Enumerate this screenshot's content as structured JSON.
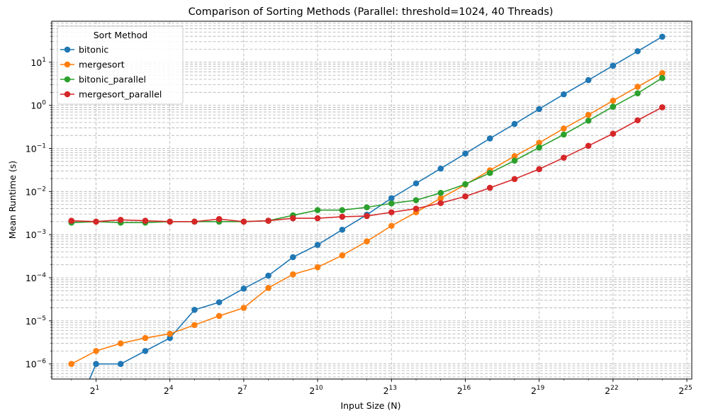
{
  "chart_data": {
    "type": "line",
    "title": "Comparison of Sorting Methods (Parallel: threshold=1024, 40 Threads)",
    "xlabel": "Input Size (N)",
    "ylabel": "Mean Runtime (s)",
    "x_scale": "log2",
    "y_scale": "log10",
    "xlim_exponent": [
      -0.8,
      25.2
    ],
    "ylim_log10": [
      -6.35,
      1.95
    ],
    "x_ticks": [
      {
        "base": "2",
        "exp": "1",
        "e": 1
      },
      {
        "base": "2",
        "exp": "4",
        "e": 4
      },
      {
        "base": "2",
        "exp": "7",
        "e": 7
      },
      {
        "base": "2",
        "exp": "10",
        "e": 10
      },
      {
        "base": "2",
        "exp": "13",
        "e": 13
      },
      {
        "base": "2",
        "exp": "16",
        "e": 16
      },
      {
        "base": "2",
        "exp": "19",
        "e": 19
      },
      {
        "base": "2",
        "exp": "22",
        "e": 22
      },
      {
        "base": "2",
        "exp": "25",
        "e": 25
      }
    ],
    "y_ticks": [
      {
        "base": "10",
        "exp": "1",
        "e": 1
      },
      {
        "base": "10",
        "exp": "0",
        "e": 0
      },
      {
        "base": "10",
        "exp": "−1",
        "e": -1
      },
      {
        "base": "10",
        "exp": "−2",
        "e": -2
      },
      {
        "base": "10",
        "exp": "−3",
        "e": -3
      },
      {
        "base": "10",
        "exp": "−4",
        "e": -4
      },
      {
        "base": "10",
        "exp": "−5",
        "e": -5
      },
      {
        "base": "10",
        "exp": "−6",
        "e": -6
      }
    ],
    "grid": true,
    "legend_title": "Sort Method",
    "legend_placement": "top-left",
    "x": [
      1,
      2,
      4,
      8,
      16,
      32,
      64,
      128,
      256,
      512,
      1024,
      2048,
      4096,
      8192,
      16384,
      32768,
      65536,
      131072,
      262144,
      524288,
      1048576,
      2097152,
      4194304,
      8388608,
      16777216
    ],
    "series": [
      {
        "name": "bitonic",
        "color": "#1f77b4",
        "values": [
          0,
          1e-06,
          1e-06,
          2e-06,
          4e-06,
          1.8e-05,
          2.7e-05,
          5.6e-05,
          0.000112,
          0.0003,
          0.00058,
          0.0013,
          0.0029,
          0.007,
          0.0155,
          0.034,
          0.076,
          0.17,
          0.37,
          0.82,
          1.8,
          3.85,
          8.3,
          18.0,
          39.0
        ]
      },
      {
        "name": "mergesort",
        "color": "#ff7f0e",
        "values": [
          1e-06,
          2e-06,
          3e-06,
          4e-06,
          5e-06,
          8e-06,
          1.3e-05,
          2e-05,
          5.8e-05,
          0.00012,
          0.000175,
          0.00033,
          0.0007,
          0.0016,
          0.0033,
          0.007,
          0.0145,
          0.031,
          0.066,
          0.135,
          0.29,
          0.6,
          1.28,
          2.7,
          5.6
        ]
      },
      {
        "name": "bitonic_parallel",
        "color": "#2ca02c",
        "values": [
          0.0019,
          0.002,
          0.0019,
          0.0019,
          0.002,
          0.002,
          0.002,
          0.002,
          0.0021,
          0.0028,
          0.0037,
          0.0037,
          0.0043,
          0.0053,
          0.0063,
          0.0093,
          0.0148,
          0.027,
          0.052,
          0.105,
          0.21,
          0.44,
          0.93,
          1.9,
          4.3
        ]
      },
      {
        "name": "mergesort_parallel",
        "color": "#d62728",
        "values": [
          0.0021,
          0.002,
          0.0022,
          0.0021,
          0.002,
          0.002,
          0.0023,
          0.002,
          0.0021,
          0.0024,
          0.0024,
          0.0026,
          0.0027,
          0.0033,
          0.004,
          0.0054,
          0.0077,
          0.0122,
          0.0195,
          0.033,
          0.061,
          0.115,
          0.22,
          0.45,
          0.9
        ]
      }
    ]
  }
}
